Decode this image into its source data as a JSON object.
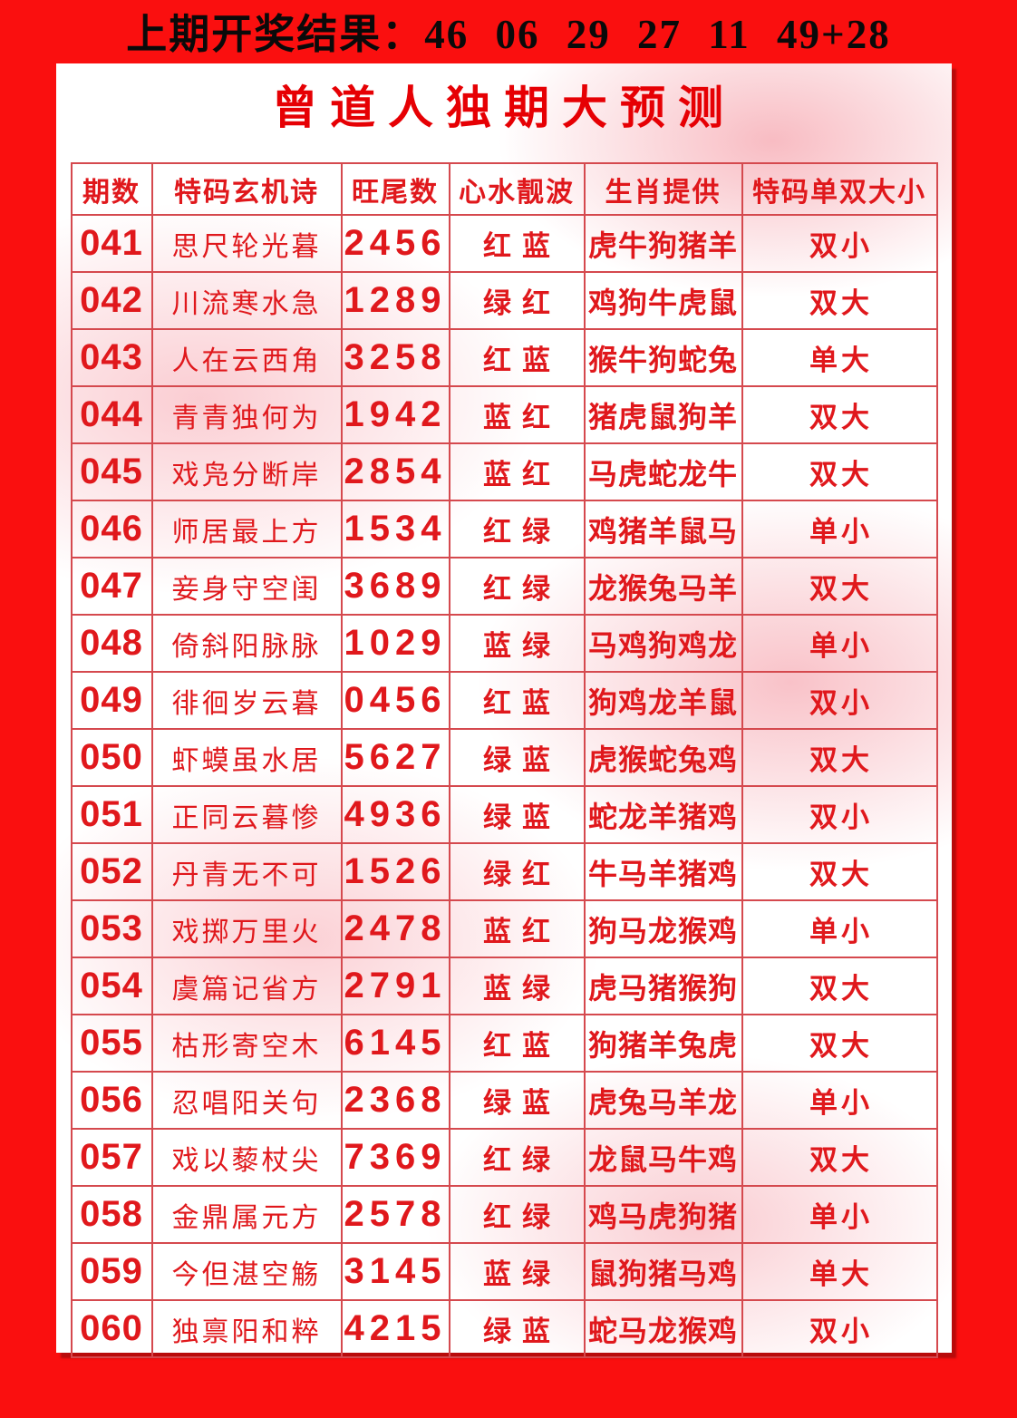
{
  "banner": {
    "text": "上期开奖结果：46 06 29 27 11 49+28"
  },
  "panel": {
    "title": "曾道人独期大预测"
  },
  "table": {
    "headers": [
      "期数",
      "特码玄机诗",
      "旺尾数",
      "心水靓波",
      "生肖提供",
      "特码单双大小"
    ],
    "columns": [
      "issue",
      "poem",
      "tail",
      "wave",
      "zodiac",
      "size"
    ],
    "rows": [
      {
        "issue": "041",
        "poem": "思尺轮光暮",
        "tail": "2456",
        "wave": "红蓝",
        "zodiac": "虎牛狗猪羊",
        "size": "双小"
      },
      {
        "issue": "042",
        "poem": "川流寒水急",
        "tail": "1289",
        "wave": "绿红",
        "zodiac": "鸡狗牛虎鼠",
        "size": "双大"
      },
      {
        "issue": "043",
        "poem": "人在云西角",
        "tail": "3258",
        "wave": "红蓝",
        "zodiac": "猴牛狗蛇兔",
        "size": "单大"
      },
      {
        "issue": "044",
        "poem": "青青独何为",
        "tail": "1942",
        "wave": "蓝红",
        "zodiac": "猪虎鼠狗羊",
        "size": "双大"
      },
      {
        "issue": "045",
        "poem": "戏凫分断岸",
        "tail": "2854",
        "wave": "蓝红",
        "zodiac": "马虎蛇龙牛",
        "size": "双大"
      },
      {
        "issue": "046",
        "poem": "师居最上方",
        "tail": "1534",
        "wave": "红绿",
        "zodiac": "鸡猪羊鼠马",
        "size": "单小"
      },
      {
        "issue": "047",
        "poem": "妾身守空闺",
        "tail": "3689",
        "wave": "红绿",
        "zodiac": "龙猴兔马羊",
        "size": "双大"
      },
      {
        "issue": "048",
        "poem": "倚斜阳脉脉",
        "tail": "1029",
        "wave": "蓝绿",
        "zodiac": "马鸡狗鸡龙",
        "size": "单小"
      },
      {
        "issue": "049",
        "poem": "徘徊岁云暮",
        "tail": "0456",
        "wave": "红蓝",
        "zodiac": "狗鸡龙羊鼠",
        "size": "双小"
      },
      {
        "issue": "050",
        "poem": "虾蟆虽水居",
        "tail": "5627",
        "wave": "绿蓝",
        "zodiac": "虎猴蛇兔鸡",
        "size": "双大"
      },
      {
        "issue": "051",
        "poem": "正同云暮惨",
        "tail": "4936",
        "wave": "绿蓝",
        "zodiac": "蛇龙羊猪鸡",
        "size": "双小"
      },
      {
        "issue": "052",
        "poem": "丹青无不可",
        "tail": "1526",
        "wave": "绿红",
        "zodiac": "牛马羊猪鸡",
        "size": "双大"
      },
      {
        "issue": "053",
        "poem": "戏掷万里火",
        "tail": "2478",
        "wave": "蓝红",
        "zodiac": "狗马龙猴鸡",
        "size": "单小"
      },
      {
        "issue": "054",
        "poem": "虞篇记省方",
        "tail": "2791",
        "wave": "蓝绿",
        "zodiac": "虎马猪猴狗",
        "size": "双大"
      },
      {
        "issue": "055",
        "poem": "枯形寄空木",
        "tail": "6145",
        "wave": "红蓝",
        "zodiac": "狗猪羊兔虎",
        "size": "双大"
      },
      {
        "issue": "056",
        "poem": "忍唱阳关句",
        "tail": "2368",
        "wave": "绿蓝",
        "zodiac": "虎兔马羊龙",
        "size": "单小"
      },
      {
        "issue": "057",
        "poem": "戏以藜杖尖",
        "tail": "7369",
        "wave": "红绿",
        "zodiac": "龙鼠马牛鸡",
        "size": "双大"
      },
      {
        "issue": "058",
        "poem": "金鼎属元方",
        "tail": "2578",
        "wave": "红绿",
        "zodiac": "鸡马虎狗猪",
        "size": "单小"
      },
      {
        "issue": "059",
        "poem": "今但湛空觞",
        "tail": "3145",
        "wave": "蓝绿",
        "zodiac": "鼠狗猪马鸡",
        "size": "单大"
      },
      {
        "issue": "060",
        "poem": "独禀阳和粹",
        "tail": "4215",
        "wave": "绿蓝",
        "zodiac": "蛇马龙猴鸡",
        "size": "双小"
      }
    ]
  },
  "colors": {
    "background_red": "#fa0f0f",
    "banner_text": "#0a0a0a",
    "title_red": "#e60004",
    "table_text_red": "#e0181c",
    "table_border_red": "#d5494e",
    "panel_pink": "#f8b4bc"
  }
}
